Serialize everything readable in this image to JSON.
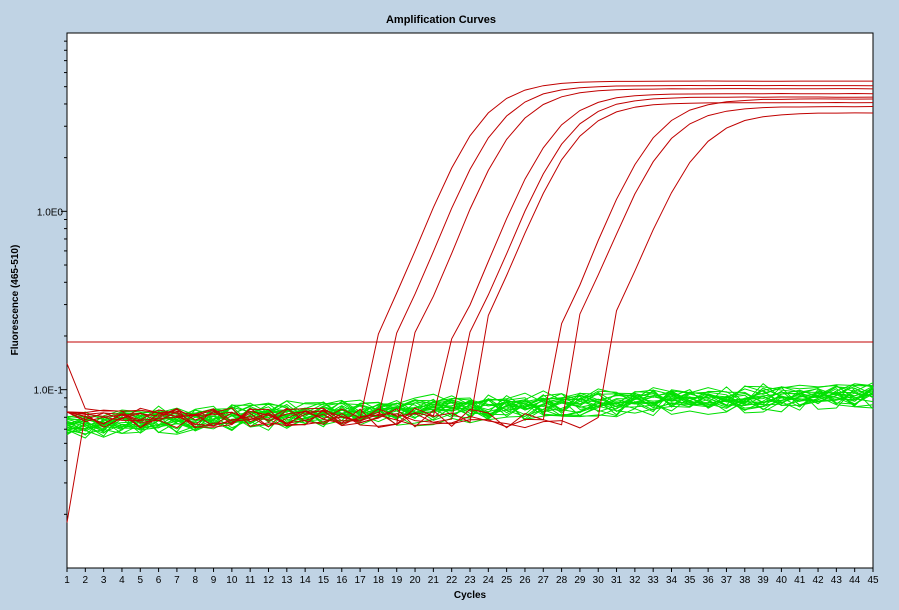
{
  "chart_data": {
    "type": "line",
    "title": "Amplification Curves",
    "xlabel": "Cycles",
    "ylabel": "Fluorescence (465-510)",
    "y_scale": "log",
    "xlim": [
      1,
      45
    ],
    "ylim": [
      0.01,
      10
    ],
    "x_ticks": [
      "1",
      "2",
      "3",
      "4",
      "5",
      "6",
      "7",
      "8",
      "9",
      "10",
      "11",
      "12",
      "13",
      "14",
      "15",
      "16",
      "17",
      "18",
      "19",
      "20",
      "21",
      "22",
      "23",
      "24",
      "25",
      "26",
      "27",
      "28",
      "29",
      "30",
      "31",
      "32",
      "33",
      "34",
      "35",
      "36",
      "37",
      "38",
      "39",
      "40",
      "41",
      "42",
      "43",
      "44",
      "45"
    ],
    "y_ticks": [
      {
        "value": 1.0,
        "label": "1.0E0"
      },
      {
        "value": 0.1,
        "label": "1.0E-1"
      }
    ],
    "threshold": 0.185,
    "grid": false,
    "legend": "none",
    "colors": {
      "amplified": "#c00000",
      "negative": "#00e000",
      "threshold": "#c00000",
      "background": "#c0d3e4",
      "plot_background": "#ffffff"
    },
    "amplified_curves": [
      {
        "onset": 17.8,
        "plateau": 5.3
      },
      {
        "onset": 18.8,
        "plateau": 5.0
      },
      {
        "onset": 19.8,
        "plateau": 4.8
      },
      {
        "onset": 22.0,
        "plateau": 4.5
      },
      {
        "onset": 22.8,
        "plateau": 4.3
      },
      {
        "onset": 23.3,
        "plateau": 4.0
      },
      {
        "onset": 27.5,
        "plateau": 4.2
      },
      {
        "onset": 28.3,
        "plateau": 3.8
      },
      {
        "onset": 30.2,
        "plateau": 3.5
      }
    ],
    "negative_curve_count": 24,
    "baseline_start": 0.065,
    "baseline_end": 0.095
  }
}
